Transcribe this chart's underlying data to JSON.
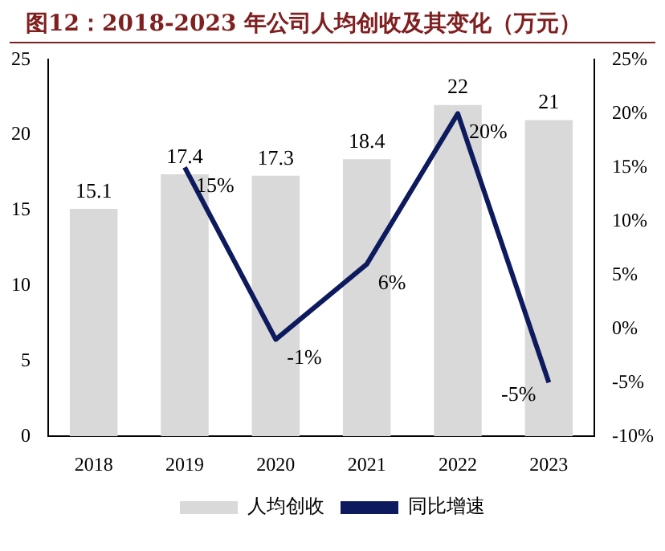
{
  "chart_data": {
    "type": "bar",
    "title": "图12：2018-2023 年公司人均创收及其变化（万元）",
    "categories": [
      "2018",
      "2019",
      "2020",
      "2021",
      "2022",
      "2023"
    ],
    "series": [
      {
        "name": "人均创收",
        "color": "#d9d9d9",
        "values": [
          15.1,
          17.4,
          17.3,
          18.4,
          22,
          21
        ],
        "value_labels": [
          "15.1",
          "17.4",
          "17.3",
          "18.4",
          "22",
          "21"
        ]
      },
      {
        "name": "同比增速",
        "type": "line",
        "axis": "y2",
        "color": "#0d1b5e",
        "values": [
          null,
          15,
          -1,
          6,
          20,
          -5
        ],
        "value_labels": [
          null,
          "15%",
          "-1%",
          "6%",
          "20%",
          "-5%"
        ]
      }
    ],
    "ylim": [
      0,
      25
    ],
    "yticks": [
      0,
      5,
      10,
      15,
      20,
      25
    ],
    "y2lim": [
      -10,
      25
    ],
    "y2ticks": [
      {
        "value": -10,
        "label": "-10%"
      },
      {
        "value": -5,
        "label": "-5%"
      },
      {
        "value": 0,
        "label": "0%"
      },
      {
        "value": 5,
        "label": "5%"
      },
      {
        "value": 10,
        "label": "10%"
      },
      {
        "value": 15,
        "label": "15%"
      },
      {
        "value": 20,
        "label": "20%"
      },
      {
        "value": 25,
        "label": "25%"
      }
    ],
    "legend": "bottom",
    "grid": false,
    "marker": "none"
  }
}
